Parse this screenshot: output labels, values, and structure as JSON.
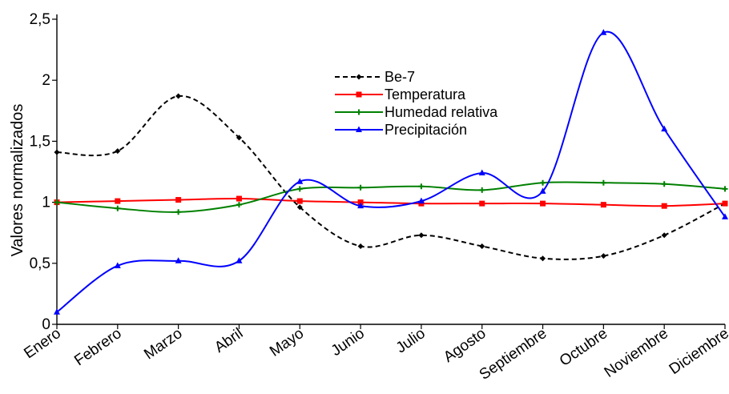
{
  "chart_data": {
    "type": "line",
    "categories": [
      "Enero",
      "Febrero",
      "Marzo",
      "Abril",
      "Mayo",
      "Junio",
      "Julio",
      "Agosto",
      "Septiembre",
      "Octubre",
      "Noviembre",
      "Diciembre"
    ],
    "ylabel": "Valores normalizados",
    "xlabel": "",
    "ylim": [
      0,
      2.5
    ],
    "yticks": [
      0,
      0.5,
      1,
      1.5,
      2,
      2.5
    ],
    "ytick_labels": [
      "0",
      "0,5",
      "1",
      "1,5",
      "2",
      "2,5"
    ],
    "grid": false,
    "legend_position": "top-center",
    "series": [
      {
        "name": "Be-7",
        "color": "#000000",
        "style": "dashed",
        "marker": "diamond",
        "values": [
          1.41,
          1.42,
          1.87,
          1.53,
          0.96,
          0.64,
          0.73,
          0.64,
          0.54,
          0.56,
          0.73,
          0.99
        ]
      },
      {
        "name": "Temperatura",
        "color": "#ff0000",
        "style": "solid",
        "marker": "square",
        "values": [
          1.0,
          1.01,
          1.02,
          1.03,
          1.01,
          1.0,
          0.99,
          0.99,
          0.99,
          0.98,
          0.97,
          0.99
        ]
      },
      {
        "name": "Humedad relativa",
        "color": "#008000",
        "style": "solid",
        "marker": "plus",
        "values": [
          1.0,
          0.95,
          0.92,
          0.98,
          1.11,
          1.12,
          1.13,
          1.1,
          1.16,
          1.16,
          1.15,
          1.11
        ]
      },
      {
        "name": "Precipitación",
        "color": "#0000ff",
        "style": "solid",
        "marker": "triangle",
        "values": [
          0.1,
          0.48,
          0.52,
          0.52,
          1.17,
          0.97,
          1.01,
          1.24,
          1.09,
          2.39,
          1.6,
          0.88
        ]
      }
    ]
  }
}
